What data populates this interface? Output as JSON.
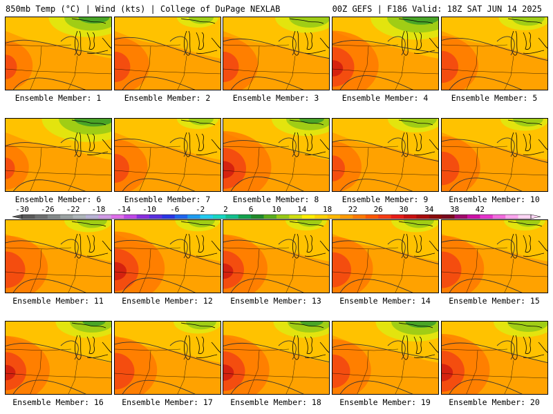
{
  "header": {
    "left": "850mb Temp (°C) | Wind (kts) | College of DuPage NEXLAB",
    "right": "00Z GEFS | F186 Valid: 18Z SAT JUN 14 2025"
  },
  "panels": [
    {
      "label": "Ensemble Member: 1",
      "heat": 0.35,
      "cool": 0.75
    },
    {
      "label": "Ensemble Member: 2",
      "heat": 0.55,
      "cool": 0.2
    },
    {
      "label": "Ensemble Member: 3",
      "heat": 0.55,
      "cool": 0.5
    },
    {
      "label": "Ensemble Member: 4",
      "heat": 0.85,
      "cool": 0.9
    },
    {
      "label": "Ensemble Member: 5",
      "heat": 0.6,
      "cool": 0.35
    },
    {
      "label": "Ensemble Member: 6",
      "heat": 0.25,
      "cool": 0.95
    },
    {
      "label": "Ensemble Member: 7",
      "heat": 0.5,
      "cool": 0.2
    },
    {
      "label": "Ensemble Member: 8",
      "heat": 0.9,
      "cool": 0.6
    },
    {
      "label": "Ensemble Member: 9",
      "heat": 0.4,
      "cool": 0.4
    },
    {
      "label": "Ensemble Member: 10",
      "heat": 0.65,
      "cool": 0.3
    },
    {
      "label": "Ensemble Member: 11",
      "heat": 0.75,
      "cool": 0.3
    },
    {
      "label": "Ensemble Member: 12",
      "heat": 0.95,
      "cool": 0.25
    },
    {
      "label": "Ensemble Member: 13",
      "heat": 0.8,
      "cool": 0.2
    },
    {
      "label": "Ensemble Member: 14",
      "heat": 0.7,
      "cool": 0.3
    },
    {
      "label": "Ensemble Member: 15",
      "heat": 0.75,
      "cool": 0.2
    },
    {
      "label": "Ensemble Member: 16",
      "heat": 0.8,
      "cool": 0.55
    },
    {
      "label": "Ensemble Member: 17",
      "heat": 0.75,
      "cool": 0.3
    },
    {
      "label": "Ensemble Member: 18",
      "heat": 0.85,
      "cool": 0.55
    },
    {
      "label": "Ensemble Member: 19",
      "heat": 0.65,
      "cool": 0.75
    },
    {
      "label": "Ensemble Member: 20",
      "heat": 0.9,
      "cool": 0.5
    }
  ],
  "colorbar": {
    "ticks": [
      "-30",
      "-26",
      "-22",
      "-18",
      "-14",
      "-10",
      "-6",
      "-2",
      "2",
      "6",
      "10",
      "14",
      "18",
      "22",
      "26",
      "30",
      "34",
      "38",
      "42"
    ],
    "colors": [
      "#5a5a5a",
      "#6e7070",
      "#848a8a",
      "#9aa2a2",
      "#aeb6ba",
      "#b9b3d6",
      "#d09ae6",
      "#e070ec",
      "#c048e8",
      "#8a2fe0",
      "#5a30e0",
      "#2a36e6",
      "#1f66f0",
      "#1e9cf2",
      "#22ccf2",
      "#18d8c4",
      "#12c08e",
      "#12a24e",
      "#1f8a2a",
      "#58ae1c",
      "#98ca16",
      "#d0e010",
      "#fff000",
      "#ffd400",
      "#ffba00",
      "#ff9c00",
      "#ff7a00",
      "#ff5800",
      "#f63c14",
      "#e81c18",
      "#c81010",
      "#a80c0c",
      "#8a0c0c",
      "#7a0a1e",
      "#a00a6a",
      "#cc10a6",
      "#e634cc",
      "#f46ce0",
      "#fca6f0",
      "#fdd6f6"
    ]
  }
}
